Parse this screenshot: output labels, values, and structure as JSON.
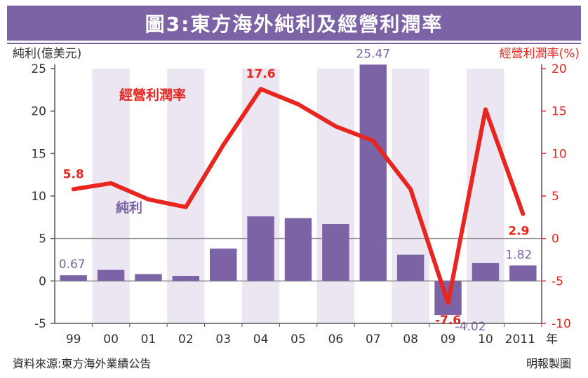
{
  "chart_data": {
    "type": "bar+line",
    "title": "圖3:東方海外純利及經營利潤率",
    "categories": [
      "99",
      "00",
      "01",
      "02",
      "03",
      "04",
      "05",
      "06",
      "07",
      "08",
      "09",
      "10",
      "2011"
    ],
    "x_unit_label": "年",
    "left_axis": {
      "label": "純利(億美元)",
      "ylim": [
        -5,
        25
      ],
      "ticks": [
        25,
        20,
        15,
        10,
        5,
        0,
        -5
      ]
    },
    "right_axis": {
      "label": "經營利潤率(%)",
      "ylim": [
        -10,
        20
      ],
      "ticks": [
        20,
        15,
        10,
        5,
        0,
        -5,
        -10
      ]
    },
    "series": [
      {
        "name": "純利",
        "type": "bar",
        "axis": "left",
        "values": [
          0.67,
          1.3,
          0.8,
          0.6,
          3.8,
          7.6,
          7.4,
          6.7,
          25.47,
          3.1,
          -4.02,
          2.1,
          1.82
        ],
        "color": "#7b63a6"
      },
      {
        "name": "經營利潤率",
        "type": "line",
        "axis": "right",
        "values": [
          5.8,
          6.5,
          4.6,
          3.7,
          11.0,
          17.6,
          15.8,
          13.2,
          11.5,
          5.8,
          -7.6,
          15.2,
          2.9
        ],
        "color": "#e8261f"
      }
    ],
    "bar_labels": [
      {
        "index": 0,
        "text": "0.67"
      },
      {
        "index": 8,
        "text": "25.47"
      },
      {
        "index": 10,
        "text": "-4.02"
      },
      {
        "index": 12,
        "text": "1.82"
      }
    ],
    "line_labels": [
      {
        "index": 0,
        "text": "5.8"
      },
      {
        "index": 5,
        "text": "17.6"
      },
      {
        "index": 10,
        "text": "-7.6"
      },
      {
        "index": 12,
        "text": "2.9"
      }
    ],
    "legend_line_text": "經營利潤率",
    "legend_bar_text": "純利",
    "grid": false
  },
  "footer": {
    "source": "資料來源:東方海外業績公告",
    "credit": "明報製圖"
  },
  "colors": {
    "bar": "#7b63a6",
    "line": "#e8261f",
    "stripe": "#ece6f2",
    "zero_line": "#8a8a8a"
  }
}
